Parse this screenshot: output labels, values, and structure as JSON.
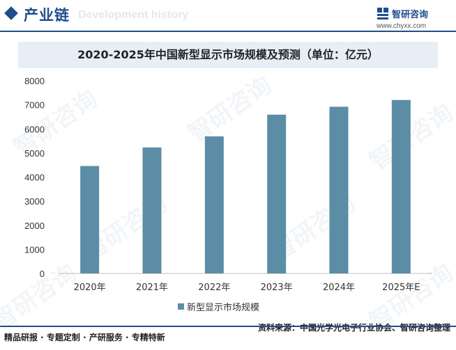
{
  "header": {
    "section_title": "产业链",
    "section_subtitle": "Development history",
    "brand_name": "智研咨询",
    "brand_url": "www.chyxx.com",
    "accent_color": "#1f4e8c"
  },
  "watermark_text": "智研咨询",
  "chart_data": {
    "type": "bar",
    "title": "2020-2025年中国新型显示市场规模及预测（单位：亿元）",
    "categories": [
      "2020年",
      "2021年",
      "2022年",
      "2023年",
      "2024年",
      "2025年E"
    ],
    "series": [
      {
        "name": "新型显示市场规模",
        "values": [
          4460,
          5230,
          5690,
          6590,
          6920,
          7200
        ],
        "color": "#5b8ea6"
      }
    ],
    "y_ticks": [
      0,
      1000,
      2000,
      3000,
      4000,
      5000,
      6000,
      7000,
      8000
    ],
    "ylim": [
      0,
      8000
    ],
    "xlabel": "",
    "ylabel": "",
    "grid": false,
    "legend_position": "bottom"
  },
  "footer": {
    "left_text": "精品研报 · 专题定制 · 产研服务 · 专精特新",
    "source_text": "资料来源：中国光学光电子行业协会、智研咨询整理"
  }
}
